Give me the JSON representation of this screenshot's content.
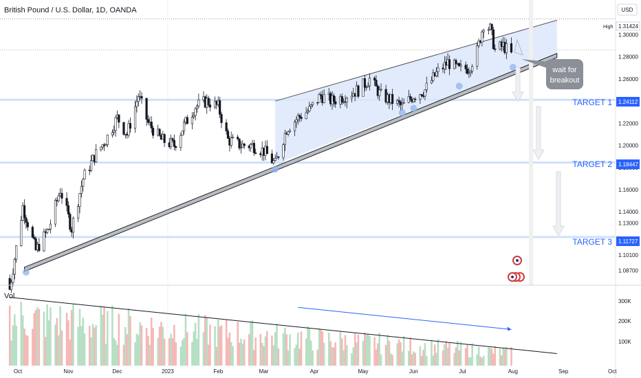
{
  "header": {
    "title": "British Pound / U.S. Dollar, 1D, OANDA",
    "currency": "USD"
  },
  "volume_pane": {
    "label": "Vol",
    "ticks": [
      "300K",
      "200K",
      "100K"
    ]
  },
  "annotation": {
    "note_line1": "wait for",
    "note_line2": "breakout"
  },
  "colors": {
    "up": "#26a69a",
    "down": "#ef5350",
    "vol_up": "#b7dfc5",
    "vol_down": "#f5b8b6",
    "target": "#2962ff",
    "wedge_fill": "#dbe6fb",
    "note_bg": "#8a8f98"
  },
  "chart_data": {
    "type": "candlestick",
    "title": "British Pound / U.S. Dollar, 1D, OANDA",
    "y_ticks": [
      "1.30000",
      "1.28000",
      "1.26000",
      "1.24000",
      "1.22000",
      "1.20000",
      "1.18000",
      "1.16000",
      "1.14000",
      "1.13000",
      "1.10100",
      "1.08700"
    ],
    "x_ticks": [
      "Oct",
      "Nov",
      "Dec",
      "2023",
      "Feb",
      "Mar",
      "Apr",
      "May",
      "Jun",
      "Jul",
      "Aug",
      "Sep",
      "Oct"
    ],
    "high": {
      "label": "High",
      "value": "1.31424"
    },
    "targets": [
      {
        "label": "TARGET 1",
        "value": "1.24112"
      },
      {
        "label": "TARGET 2",
        "value": "1.18447"
      },
      {
        "label": "TARGET 3",
        "value": "1.11727"
      }
    ],
    "close_path": [
      [
        "2022-09-26",
        1.07
      ],
      [
        "2022-10-04",
        1.145
      ],
      [
        "2022-10-12",
        1.105
      ],
      [
        "2022-10-20",
        1.125
      ],
      [
        "2022-10-27",
        1.16
      ],
      [
        "2022-11-03",
        1.125
      ],
      [
        "2022-11-10",
        1.17
      ],
      [
        "2022-11-17",
        1.19
      ],
      [
        "2022-11-24",
        1.205
      ],
      [
        "2022-12-01",
        1.225
      ],
      [
        "2022-12-07",
        1.21
      ],
      [
        "2022-12-14",
        1.245
      ],
      [
        "2022-12-20",
        1.22
      ],
      [
        "2022-12-28",
        1.205
      ],
      [
        "2023-01-05",
        1.2
      ],
      [
        "2023-01-11",
        1.218
      ],
      [
        "2023-01-18",
        1.235
      ],
      [
        "2023-01-25",
        1.24
      ],
      [
        "2023-02-01",
        1.235
      ],
      [
        "2023-02-07",
        1.205
      ],
      [
        "2023-02-15",
        1.2
      ],
      [
        "2023-02-22",
        1.2
      ],
      [
        "2023-03-01",
        1.195
      ],
      [
        "2023-03-08",
        1.183
      ],
      [
        "2023-03-15",
        1.215
      ],
      [
        "2023-03-22",
        1.225
      ],
      [
        "2023-03-29",
        1.232
      ],
      [
        "2023-04-05",
        1.245
      ],
      [
        "2023-04-12",
        1.24
      ],
      [
        "2023-04-20",
        1.245
      ],
      [
        "2023-04-28",
        1.25
      ],
      [
        "2023-05-05",
        1.26
      ],
      [
        "2023-05-12",
        1.245
      ],
      [
        "2023-05-19",
        1.24
      ],
      [
        "2023-05-25",
        1.235
      ],
      [
        "2023-06-01",
        1.245
      ],
      [
        "2023-06-08",
        1.25
      ],
      [
        "2023-06-15",
        1.265
      ],
      [
        "2023-06-22",
        1.275
      ],
      [
        "2023-06-29",
        1.268
      ],
      [
        "2023-07-05",
        1.27
      ],
      [
        "2023-07-10",
        1.285
      ],
      [
        "2023-07-14",
        1.31
      ],
      [
        "2023-07-18",
        1.305
      ],
      [
        "2023-07-21",
        1.286
      ],
      [
        "2023-07-26",
        1.29
      ],
      [
        "2023-07-31",
        1.282
      ]
    ],
    "wedge_upper": [
      [
        "2023-03-08",
        1.24
      ],
      [
        "2023-08-28",
        1.313
      ]
    ],
    "wedge_lower": [
      [
        "2023-03-08",
        1.183
      ],
      [
        "2023-08-28",
        1.283
      ]
    ],
    "trend_support": [
      [
        "2022-10-05",
        1.09
      ],
      [
        "2023-08-28",
        1.283
      ]
    ],
    "volume_trend": [
      [
        "2022-09-26",
        340000
      ],
      [
        "2023-08-14",
        80000
      ]
    ],
    "volume_arrow": [
      [
        "2023-03-22",
        290000
      ],
      [
        "2023-07-31",
        180000
      ]
    ],
    "volume_ylim": [
      0,
      390000
    ],
    "ylim": [
      1.075,
      1.33
    ],
    "xlim": [
      "2022-09-20",
      "2023-10-03"
    ]
  }
}
